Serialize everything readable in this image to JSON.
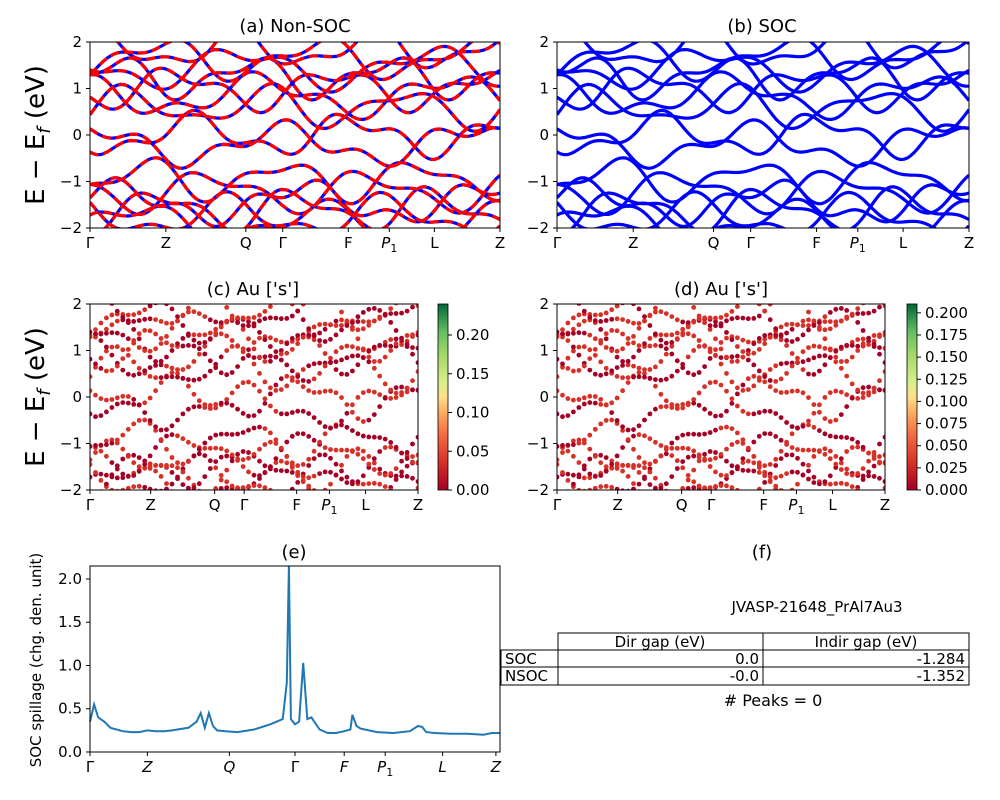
{
  "figure": {
    "jid_label": "JVASP-21648_PrAl7Au3",
    "peaks_text": "# Peaks = 0",
    "ylabel_E": "E − E_f (eV)"
  },
  "chart_data": [
    {
      "id": "a",
      "type": "line",
      "title": "(a) Non-SOC",
      "ylim": [
        -2,
        2
      ],
      "yticks": [
        "2",
        "1",
        "0",
        "−1",
        "−2"
      ],
      "xticks": [
        "Γ",
        "Z",
        "Q",
        "Γ",
        "F",
        "P1",
        "L",
        "Z"
      ],
      "xtick_pos": [
        0.0,
        0.185,
        0.38,
        0.47,
        0.63,
        0.73,
        0.84,
        1.0
      ],
      "series": [
        {
          "color": "#0000ff",
          "style": "solid",
          "bands": [
            -1.9,
            -1.75,
            -1.6,
            -1.45,
            -1.2,
            -0.95,
            -0.2,
            0.0,
            0.6,
            0.85,
            1.0,
            1.25,
            1.45,
            1.65,
            1.85
          ]
        },
        {
          "color": "#ff0000",
          "style": "dashed",
          "bands": [
            -1.9,
            -1.75,
            -1.6,
            -1.45,
            -1.2,
            -0.95,
            -0.2,
            0.0,
            0.6,
            0.85,
            1.0,
            1.25,
            1.45,
            1.65,
            1.85
          ]
        }
      ]
    },
    {
      "id": "b",
      "type": "line",
      "title": "(b) SOC",
      "ylim": [
        -2,
        2
      ],
      "yticks": [
        "2",
        "1",
        "0",
        "−1",
        "−2"
      ],
      "xticks": [
        "Γ",
        "Z",
        "Q",
        "Γ",
        "F",
        "P1",
        "L",
        "Z"
      ],
      "xtick_pos": [
        0.0,
        0.185,
        0.38,
        0.47,
        0.63,
        0.73,
        0.84,
        1.0
      ],
      "series": [
        {
          "color": "#0000ff",
          "style": "solid",
          "bands": [
            -1.9,
            -1.75,
            -1.6,
            -1.45,
            -1.2,
            -0.95,
            -0.2,
            0.0,
            0.6,
            0.85,
            1.0,
            1.25,
            1.45,
            1.65,
            1.85
          ]
        }
      ]
    },
    {
      "id": "c",
      "type": "scatter",
      "title": "(c)  Au ['s']",
      "ylim": [
        -2,
        2
      ],
      "yticks": [
        "2",
        "1",
        "0",
        "−1",
        "−2"
      ],
      "xticks": [
        "Γ",
        "Z",
        "Q",
        "Γ",
        "F",
        "P1",
        "L",
        "Z"
      ],
      "xtick_pos": [
        0.0,
        0.185,
        0.38,
        0.47,
        0.63,
        0.73,
        0.84,
        1.0
      ],
      "colorbar": {
        "min": 0.0,
        "max": 0.24,
        "ticks": [
          "0.20",
          "0.15",
          "0.10",
          "0.05",
          "0.00"
        ],
        "tick_values": [
          0.2,
          0.15,
          0.1,
          0.05,
          0.0
        ]
      },
      "bands": [
        -1.9,
        -1.75,
        -1.6,
        -1.45,
        -1.2,
        -0.95,
        -0.2,
        0.0,
        0.6,
        0.85,
        1.0,
        1.25,
        1.45,
        1.65,
        1.85
      ]
    },
    {
      "id": "d",
      "type": "scatter",
      "title": "(d) Au ['s']",
      "ylim": [
        -2,
        2
      ],
      "yticks": [
        "2",
        "1",
        "0",
        "−1",
        "−2"
      ],
      "xticks": [
        "Γ",
        "Z",
        "Q",
        "Γ",
        "F",
        "P1",
        "L",
        "Z"
      ],
      "xtick_pos": [
        0.0,
        0.185,
        0.38,
        0.47,
        0.63,
        0.73,
        0.84,
        1.0
      ],
      "colorbar": {
        "min": 0.0,
        "max": 0.21,
        "ticks": [
          "0.200",
          "0.175",
          "0.150",
          "0.125",
          "0.100",
          "0.075",
          "0.050",
          "0.025",
          "0.000"
        ],
        "tick_values": [
          0.2,
          0.175,
          0.15,
          0.125,
          0.1,
          0.075,
          0.05,
          0.025,
          0.0
        ]
      },
      "bands": [
        -1.9,
        -1.75,
        -1.6,
        -1.45,
        -1.2,
        -0.95,
        -0.2,
        0.0,
        0.6,
        0.85,
        1.0,
        1.25,
        1.45,
        1.65,
        1.85
      ]
    },
    {
      "id": "e",
      "type": "line",
      "title": "(e)",
      "ylabel": "SOC spillage (chg. den. unit)",
      "ylim": [
        0,
        2.15
      ],
      "yticks": [
        "2.0",
        "1.5",
        "1.0",
        "0.5",
        "0.0"
      ],
      "ytick_values": [
        2.0,
        1.5,
        1.0,
        0.5,
        0.0
      ],
      "xticks": [
        "Γ",
        "Z",
        "Q",
        "Γ",
        "F",
        "P1",
        "L",
        "Z"
      ],
      "xtick_pos": [
        0.0,
        0.14,
        0.34,
        0.5,
        0.62,
        0.72,
        0.86,
        0.99
      ],
      "color": "#1f77b4",
      "x": [
        0.0,
        0.01,
        0.02,
        0.035,
        0.05,
        0.08,
        0.1,
        0.12,
        0.14,
        0.16,
        0.18,
        0.2,
        0.24,
        0.26,
        0.27,
        0.28,
        0.29,
        0.3,
        0.31,
        0.33,
        0.36,
        0.4,
        0.44,
        0.47,
        0.48,
        0.485,
        0.49,
        0.5,
        0.51,
        0.52,
        0.53,
        0.54,
        0.56,
        0.58,
        0.6,
        0.62,
        0.635,
        0.64,
        0.65,
        0.66,
        0.7,
        0.74,
        0.78,
        0.8,
        0.81,
        0.82,
        0.84,
        0.88,
        0.92,
        0.96,
        0.98,
        1.0
      ],
      "y": [
        0.35,
        0.55,
        0.4,
        0.35,
        0.28,
        0.24,
        0.23,
        0.23,
        0.25,
        0.24,
        0.24,
        0.25,
        0.28,
        0.35,
        0.45,
        0.28,
        0.45,
        0.3,
        0.25,
        0.24,
        0.23,
        0.26,
        0.32,
        0.38,
        0.8,
        2.15,
        0.38,
        0.32,
        0.35,
        1.03,
        0.38,
        0.4,
        0.26,
        0.22,
        0.22,
        0.24,
        0.26,
        0.43,
        0.3,
        0.27,
        0.23,
        0.22,
        0.24,
        0.3,
        0.29,
        0.23,
        0.22,
        0.21,
        0.21,
        0.2,
        0.22,
        0.22
      ]
    },
    {
      "id": "f",
      "type": "table",
      "title": "(f)",
      "columns": [
        "",
        "Dir gap (eV)",
        "Indir gap (eV)"
      ],
      "rows": [
        [
          "SOC",
          "0.0",
          "-1.284"
        ],
        [
          "NSOC",
          "-0.0",
          "-1.352"
        ]
      ]
    }
  ]
}
